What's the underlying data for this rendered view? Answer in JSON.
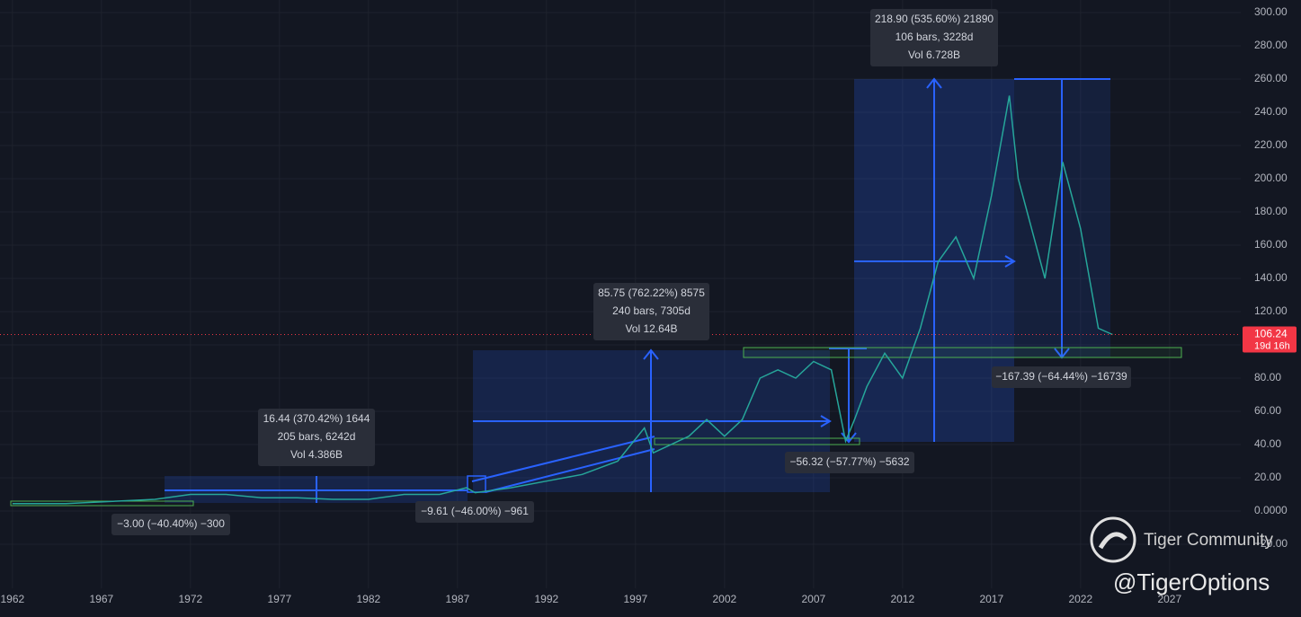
{
  "chart_data": {
    "type": "line",
    "x": [
      1962,
      1965,
      1968,
      1970,
      1972,
      1974,
      1976,
      1978,
      1980,
      1982,
      1984,
      1986,
      1987.5,
      1988,
      1990,
      1992,
      1994,
      1996,
      1997.5,
      1998,
      2000,
      2001,
      2002,
      2003,
      2004,
      2005,
      2006,
      2007,
      2008,
      2008.8,
      2009.3,
      2010,
      2011,
      2012,
      2013,
      2014,
      2015,
      2016,
      2017,
      2018,
      2018.5,
      2019,
      2020,
      2021,
      2022,
      2023,
      2023.8
    ],
    "values": [
      4.5,
      4.5,
      6,
      7,
      10,
      10,
      8,
      8,
      7,
      7,
      10,
      10,
      14,
      11,
      14,
      18,
      22,
      30,
      50,
      35,
      45,
      55,
      45,
      55,
      80,
      85,
      80,
      90,
      85,
      42,
      55,
      75,
      95,
      80,
      110,
      150,
      165,
      140,
      190,
      250,
      200,
      180,
      140,
      210,
      170,
      110,
      106.24
    ],
    "color": "#26a69a",
    "xlim": [
      1961.3,
      2031.0
    ],
    "ylim": [
      -46.5,
      307.6
    ],
    "xticks": [
      1962,
      1967,
      1972,
      1977,
      1982,
      1987,
      1992,
      1997,
      2002,
      2007,
      2012,
      2017,
      2022,
      2027
    ],
    "yticks": [
      {
        "value": 300,
        "label": "300.00"
      },
      {
        "value": 280,
        "label": "280.00"
      },
      {
        "value": 260,
        "label": "260.00"
      },
      {
        "value": 240,
        "label": "240.00"
      },
      {
        "value": 220,
        "label": "220.00"
      },
      {
        "value": 200,
        "label": "200.00"
      },
      {
        "value": 180,
        "label": "180.00"
      },
      {
        "value": 160,
        "label": "160.00"
      },
      {
        "value": 140,
        "label": "140.00"
      },
      {
        "value": 120,
        "label": "120.00"
      },
      {
        "value": 100,
        "label": "100.00"
      },
      {
        "value": 80,
        "label": "80.00"
      },
      {
        "value": 60,
        "label": "60.00"
      },
      {
        "value": 40,
        "label": "40.00"
      },
      {
        "value": 20,
        "label": "20.00"
      },
      {
        "value": 0,
        "label": "0.0000"
      },
      {
        "value": -20,
        "label": "−20.00"
      }
    ],
    "grid": true,
    "countdown": "19d 16h",
    "annotations": [
      [
        "16.44 (370.42%) 1644",
        "205 bars, 6242d",
        "Vol 4.386B"
      ],
      [
        "−3.00 (−40.40%) −300"
      ],
      [
        "−9.61 (−46.00%) −961"
      ],
      [
        "85.75 (762.22%) 8575",
        "240 bars, 7305d",
        "Vol 12.64B"
      ],
      [
        "−56.32 (−57.77%) −5632"
      ],
      [
        "218.90 (535.60%) 21890",
        "106 bars, 3228d",
        "Vol 6.728B"
      ],
      [
        "−167.39 (−64.44%) −16739"
      ]
    ],
    "watermark": [
      "Tiger Community",
      "@TigerOptions"
    ]
  }
}
